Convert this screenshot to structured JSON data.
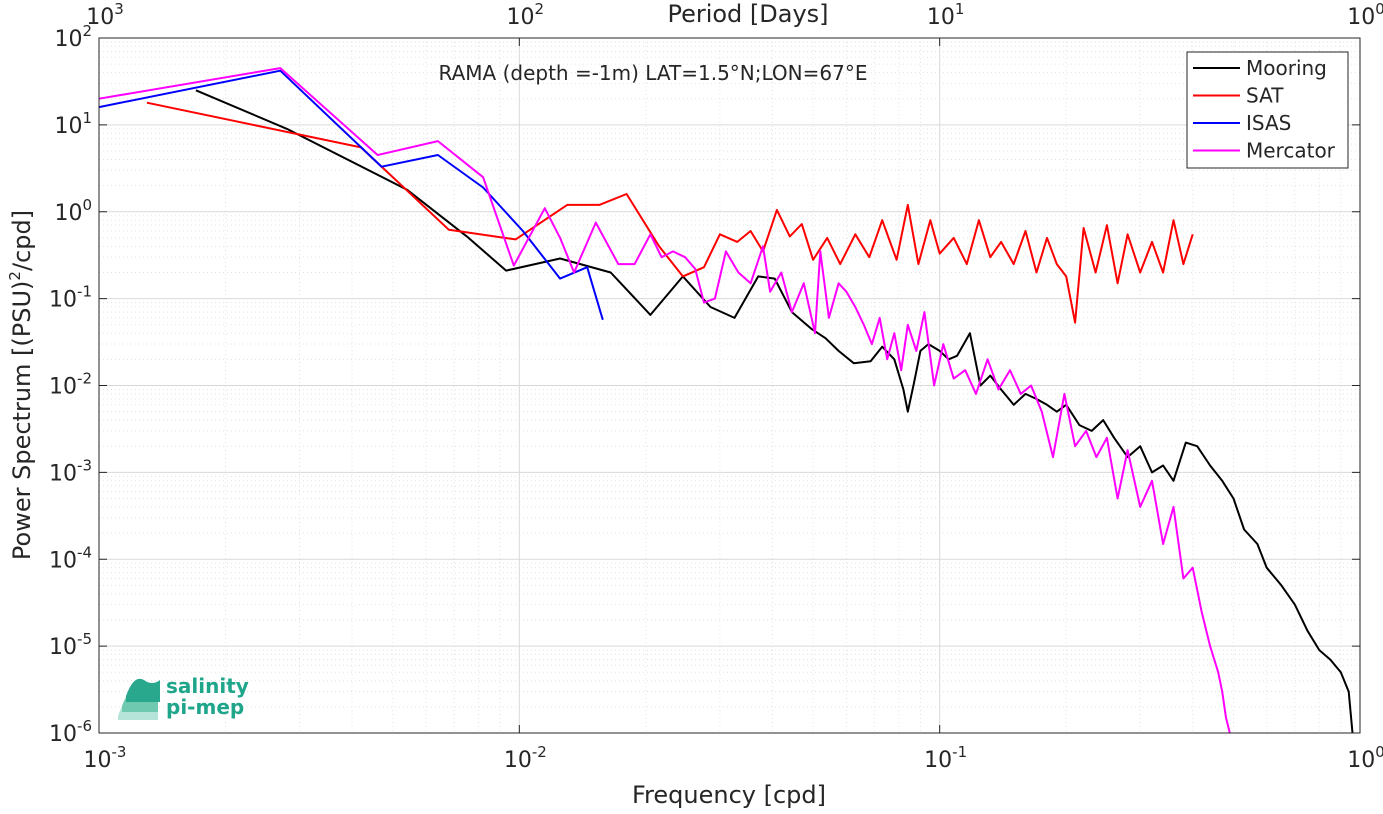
{
  "chart_data": {
    "type": "line",
    "title": "RAMA (depth =-1m) LAT=1.5°N;LON=67°E",
    "xlabel": "Frequency [cpd]",
    "ylabel_base": "Power Spectrum [(PSU)",
    "ylabel_sup": "2",
    "ylabel_tail": "/cpd]",
    "top_xlabel": "Period [Days]",
    "x_scale": "log",
    "y_scale": "log",
    "xlim": [
      0.001,
      1
    ],
    "ylim": [
      1e-06,
      100
    ],
    "grid": true,
    "legend_position": "top-right",
    "x_ticks": [
      {
        "base": "10",
        "exp": "-3",
        "v": 0.001
      },
      {
        "base": "10",
        "exp": "-2",
        "v": 0.01
      },
      {
        "base": "10",
        "exp": "-1",
        "v": 0.1
      },
      {
        "base": "10",
        "exp": "0",
        "v": 1
      }
    ],
    "top_ticks": [
      {
        "base": "10",
        "exp": "3",
        "v": 0.001
      },
      {
        "base": "10",
        "exp": "2",
        "v": 0.01
      },
      {
        "base": "10",
        "exp": "1",
        "v": 0.1
      },
      {
        "base": "10",
        "exp": "0",
        "v": 1
      }
    ],
    "y_ticks": [
      {
        "base": "10",
        "exp": "2",
        "v": 100
      },
      {
        "base": "10",
        "exp": "1",
        "v": 10
      },
      {
        "base": "10",
        "exp": "0",
        "v": 1
      },
      {
        "base": "10",
        "exp": "-1",
        "v": 0.1
      },
      {
        "base": "10",
        "exp": "-2",
        "v": 0.01
      },
      {
        "base": "10",
        "exp": "-3",
        "v": 0.001
      },
      {
        "base": "10",
        "exp": "-4",
        "v": 0.0001
      },
      {
        "base": "10",
        "exp": "-5",
        "v": 1e-05
      },
      {
        "base": "10",
        "exp": "-6",
        "v": 1e-06
      }
    ],
    "series": [
      {
        "name": "Mooring",
        "color": "#000000",
        "x": [
          0.0017,
          0.0028,
          0.0054,
          0.0075,
          0.0093,
          0.0125,
          0.0165,
          0.0205,
          0.0245,
          0.0285,
          0.0325,
          0.037,
          0.0405,
          0.0445,
          0.0495,
          0.0535,
          0.0575,
          0.0625,
          0.0685,
          0.073,
          0.078,
          0.082,
          0.084,
          0.087,
          0.09,
          0.094,
          0.1,
          0.105,
          0.11,
          0.118,
          0.125,
          0.132,
          0.14,
          0.15,
          0.16,
          0.17,
          0.18,
          0.19,
          0.2,
          0.215,
          0.23,
          0.245,
          0.26,
          0.28,
          0.3,
          0.32,
          0.34,
          0.36,
          0.385,
          0.41,
          0.44,
          0.47,
          0.5,
          0.53,
          0.57,
          0.6,
          0.65,
          0.7,
          0.75,
          0.8,
          0.85,
          0.9,
          0.94,
          0.96
        ],
        "y": [
          25,
          9,
          1.8,
          0.52,
          0.21,
          0.29,
          0.2,
          0.065,
          0.18,
          0.08,
          0.06,
          0.18,
          0.17,
          0.07,
          0.045,
          0.035,
          0.025,
          0.018,
          0.019,
          0.028,
          0.02,
          0.009,
          0.005,
          0.011,
          0.025,
          0.03,
          0.025,
          0.02,
          0.022,
          0.04,
          0.01,
          0.013,
          0.009,
          0.006,
          0.008,
          0.007,
          0.006,
          0.005,
          0.006,
          0.0035,
          0.003,
          0.004,
          0.0025,
          0.0015,
          0.002,
          0.001,
          0.0012,
          0.0008,
          0.0022,
          0.002,
          0.0012,
          0.0008,
          0.0005,
          0.00022,
          0.00015,
          8e-05,
          5e-05,
          3e-05,
          1.5e-05,
          9e-06,
          7e-06,
          5e-06,
          3e-06,
          1e-06
        ]
      },
      {
        "name": "SAT",
        "color": "#ff0000",
        "x": [
          0.0013,
          0.0042,
          0.0068,
          0.0098,
          0.013,
          0.0155,
          0.018,
          0.0215,
          0.0245,
          0.0275,
          0.03,
          0.033,
          0.0355,
          0.038,
          0.041,
          0.044,
          0.047,
          0.05,
          0.054,
          0.058,
          0.063,
          0.068,
          0.073,
          0.079,
          0.084,
          0.089,
          0.095,
          0.1,
          0.108,
          0.116,
          0.124,
          0.132,
          0.14,
          0.15,
          0.16,
          0.17,
          0.18,
          0.19,
          0.2,
          0.21,
          0.22,
          0.235,
          0.25,
          0.265,
          0.28,
          0.3,
          0.32,
          0.34,
          0.36,
          0.38,
          0.4
        ],
        "y": [
          18,
          5.5,
          0.62,
          0.48,
          1.2,
          1.2,
          1.6,
          0.4,
          0.18,
          0.23,
          0.55,
          0.45,
          0.6,
          0.35,
          1.05,
          0.52,
          0.72,
          0.28,
          0.5,
          0.25,
          0.55,
          0.3,
          0.8,
          0.28,
          1.2,
          0.25,
          0.8,
          0.33,
          0.5,
          0.25,
          0.8,
          0.3,
          0.45,
          0.25,
          0.6,
          0.2,
          0.5,
          0.25,
          0.18,
          0.053,
          0.65,
          0.2,
          0.7,
          0.15,
          0.55,
          0.2,
          0.45,
          0.2,
          0.8,
          0.25,
          0.55
        ]
      },
      {
        "name": "ISAS",
        "color": "#0000ff",
        "x": [
          0.001,
          0.0027,
          0.0047,
          0.0064,
          0.0082,
          0.0102,
          0.0125,
          0.0145,
          0.0158
        ],
        "y": [
          16,
          42,
          3.3,
          4.5,
          1.9,
          0.6,
          0.17,
          0.23,
          0.057
        ]
      },
      {
        "name": "Mercator",
        "color": "#ff00ff",
        "x": [
          0.001,
          0.0027,
          0.0046,
          0.0064,
          0.0082,
          0.0097,
          0.0115,
          0.0125,
          0.0135,
          0.0152,
          0.0172,
          0.0188,
          0.0205,
          0.0218,
          0.0232,
          0.0248,
          0.0262,
          0.0275,
          0.0292,
          0.031,
          0.0332,
          0.0355,
          0.038,
          0.0395,
          0.042,
          0.0445,
          0.0475,
          0.0505,
          0.052,
          0.0545,
          0.0575,
          0.06,
          0.063,
          0.066,
          0.069,
          0.072,
          0.075,
          0.078,
          0.081,
          0.084,
          0.088,
          0.092,
          0.097,
          0.102,
          0.108,
          0.115,
          0.122,
          0.13,
          0.138,
          0.147,
          0.156,
          0.165,
          0.175,
          0.186,
          0.198,
          0.21,
          0.223,
          0.236,
          0.25,
          0.265,
          0.28,
          0.3,
          0.32,
          0.34,
          0.36,
          0.38,
          0.4,
          0.42,
          0.44,
          0.46,
          0.47,
          0.48,
          0.49
        ],
        "y": [
          20,
          45,
          4.5,
          6.5,
          2.5,
          0.24,
          1.1,
          0.5,
          0.2,
          0.75,
          0.25,
          0.25,
          0.55,
          0.3,
          0.35,
          0.3,
          0.22,
          0.09,
          0.1,
          0.35,
          0.2,
          0.15,
          0.4,
          0.12,
          0.2,
          0.07,
          0.15,
          0.04,
          0.35,
          0.06,
          0.15,
          0.12,
          0.08,
          0.05,
          0.03,
          0.06,
          0.02,
          0.04,
          0.015,
          0.05,
          0.025,
          0.07,
          0.01,
          0.03,
          0.012,
          0.015,
          0.008,
          0.02,
          0.009,
          0.015,
          0.008,
          0.01,
          0.005,
          0.0015,
          0.008,
          0.002,
          0.003,
          0.0015,
          0.0025,
          0.0005,
          0.0018,
          0.0004,
          0.0008,
          0.00015,
          0.0004,
          6e-05,
          8e-05,
          2.5e-05,
          1e-05,
          5e-06,
          3e-06,
          1.5e-06,
          1e-06
        ]
      }
    ]
  },
  "logo": {
    "line1": "salinity",
    "line2": "pi-mep",
    "color": "#1ea58a"
  }
}
